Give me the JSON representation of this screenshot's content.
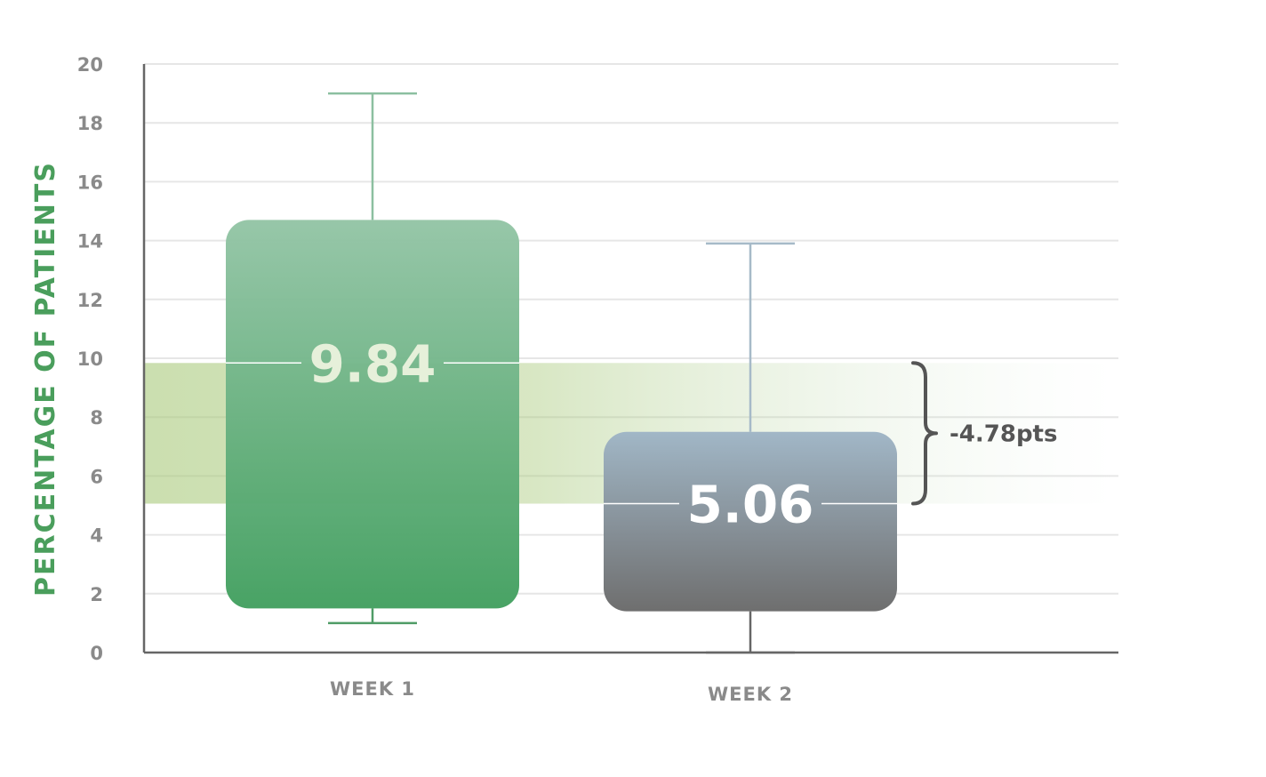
{
  "chart_data": {
    "type": "box",
    "ylabel": "PERCENTAGE OF PATIENTS",
    "xlabel": "",
    "ylim": [
      0,
      20
    ],
    "yticks": [
      0,
      2,
      4,
      6,
      8,
      10,
      12,
      14,
      16,
      18,
      20
    ],
    "grid": true,
    "categories": [
      "WEEK 1",
      "WEEK 2"
    ],
    "boxes": [
      {
        "category": "WEEK 1",
        "whisker_low": 1.0,
        "q1": 1.5,
        "median": 9.84,
        "q3": 14.7,
        "whisker_high": 19.0,
        "label": "9.84",
        "color_top": "#94c5a6",
        "color_bottom": "#43a060"
      },
      {
        "category": "WEEK 2",
        "whisker_low": 0.0,
        "q1": 1.4,
        "median": 5.06,
        "q3": 7.5,
        "whisker_high": 13.9,
        "label": "5.06",
        "color_top": "#9fb5c6",
        "color_bottom": "#6a6a6a"
      }
    ],
    "difference_band": {
      "from": 5.06,
      "to": 9.84,
      "label": "-4.78pts",
      "color": "#a8c97a"
    },
    "colors": {
      "axis": "#666666",
      "grid": "#e6e6e6",
      "tick": "#8a8a8a",
      "ylabel": "#4a9e5c",
      "annotation": "#555555"
    }
  }
}
